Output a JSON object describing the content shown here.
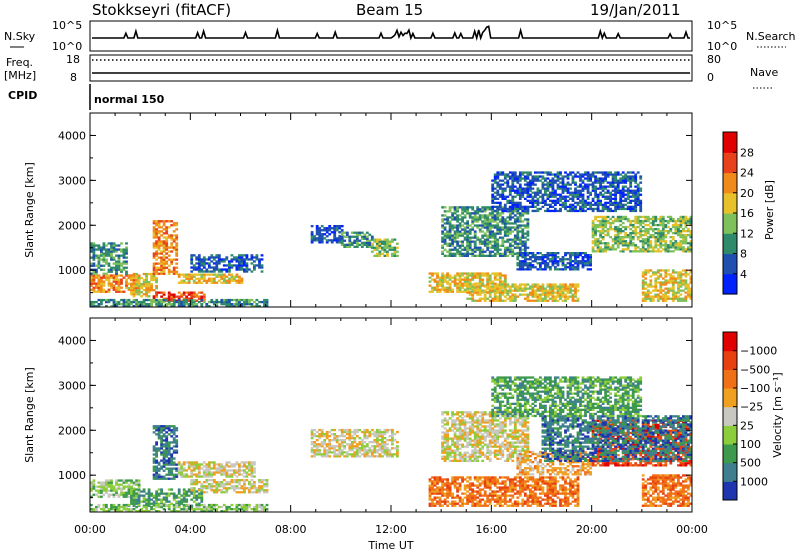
{
  "header": {
    "title": "Stokkseyri (fitACF)",
    "beam": "Beam 15",
    "date": "19/Jan/2011"
  },
  "top_panels": {
    "nsky_label": "N.Sky",
    "nsky_ticks": [
      "10^5",
      "10^0"
    ],
    "nsearch_label": "N.Search",
    "nsearch_ticks": [
      "10^5",
      "10^0"
    ],
    "freq_label": "Freq.",
    "freq_unit": "[MHz]",
    "freq_ticks": [
      "18",
      "8"
    ],
    "nave_label": "Nave",
    "nave_ticks": [
      "80",
      "0"
    ],
    "cpid_label": "CPID",
    "cpid_value": "normal 150"
  },
  "chart_data": [
    {
      "type": "heatmap",
      "name": "power",
      "ylabel": "Slant Range [km]",
      "xlabel": "",
      "ylim": [
        180,
        4500
      ],
      "yticks": [
        "1000",
        "2000",
        "3000",
        "4000"
      ],
      "xlim_hours": [
        0,
        24
      ],
      "colorbar": {
        "label": "Power [dB]",
        "ticks": [
          "4",
          "8",
          "12",
          "16",
          "20",
          "24",
          "28"
        ],
        "colors": [
          "#0022ff",
          "#1f50b0",
          "#2e8a6a",
          "#7ec05a",
          "#e7c12a",
          "#f08a18",
          "#e8421c",
          "#e00000"
        ]
      },
      "regions": [
        {
          "t0": 0.0,
          "t1": 2.0,
          "r0": 500,
          "r1": 900,
          "level": 5
        },
        {
          "t0": 0.0,
          "t1": 1.5,
          "r0": 900,
          "r1": 1600,
          "level": 2
        },
        {
          "t0": 1.5,
          "t1": 2.7,
          "r0": 400,
          "r1": 900,
          "level": 4
        },
        {
          "t0": 2.5,
          "t1": 4.5,
          "r0": 300,
          "r1": 500,
          "level": 6
        },
        {
          "t0": 2.5,
          "t1": 3.5,
          "r0": 900,
          "r1": 2100,
          "level": 5
        },
        {
          "t0": 3.5,
          "t1": 6.0,
          "r0": 700,
          "r1": 900,
          "level": 4
        },
        {
          "t0": 4.0,
          "t1": 6.8,
          "r0": 950,
          "r1": 1350,
          "level": 1
        },
        {
          "t0": 0.0,
          "t1": 7.0,
          "r0": 180,
          "r1": 350,
          "level": 2
        },
        {
          "t0": 8.8,
          "t1": 10.0,
          "r0": 1600,
          "r1": 2000,
          "level": 1
        },
        {
          "t0": 10.0,
          "t1": 11.2,
          "r0": 1500,
          "r1": 1850,
          "level": 2
        },
        {
          "t0": 11.2,
          "t1": 12.2,
          "r0": 1300,
          "r1": 1700,
          "level": 3
        },
        {
          "t0": 13.5,
          "t1": 16.5,
          "r0": 500,
          "r1": 950,
          "level": 4
        },
        {
          "t0": 15.0,
          "t1": 19.5,
          "r0": 300,
          "r1": 700,
          "level": 4
        },
        {
          "t0": 14.0,
          "t1": 17.5,
          "r0": 1300,
          "r1": 2400,
          "level": 2
        },
        {
          "t0": 17.0,
          "t1": 20.0,
          "r0": 1000,
          "r1": 1400,
          "level": 1
        },
        {
          "t0": 20.0,
          "t1": 24.0,
          "r0": 1400,
          "r1": 2200,
          "level": 3
        },
        {
          "t0": 22.0,
          "t1": 24.0,
          "r0": 300,
          "r1": 1000,
          "level": 4
        },
        {
          "t0": 16.0,
          "t1": 22.0,
          "r0": 2300,
          "r1": 3200,
          "level": 1
        }
      ]
    },
    {
      "type": "heatmap",
      "name": "velocity",
      "ylabel": "Slant Range [km]",
      "xlabel": "Time UT",
      "ylim": [
        180,
        4500
      ],
      "yticks": [
        "1000",
        "2000",
        "3000",
        "4000"
      ],
      "xticks": [
        "00:00",
        "04:00",
        "08:00",
        "12:00",
        "16:00",
        "20:00",
        "00:00"
      ],
      "xlim_hours": [
        0,
        24
      ],
      "colorbar": {
        "label": "Velocity [m s⁻¹]",
        "ticks": [
          "1000",
          "500",
          "100",
          "25",
          "−25",
          "−100",
          "−500",
          "−1000"
        ],
        "colors": [
          "#1f35b0",
          "#3d7f8e",
          "#3d9a4c",
          "#8ccd3c",
          "#c8c8c0",
          "#f0a020",
          "#f07018",
          "#e84010",
          "#e00000"
        ]
      },
      "regions": [
        {
          "t0": 0.0,
          "t1": 2.0,
          "r0": 500,
          "r1": 900,
          "level": 3
        },
        {
          "t0": 2.5,
          "t1": 3.5,
          "r0": 900,
          "r1": 2100,
          "level": 1
        },
        {
          "t0": 1.5,
          "t1": 4.5,
          "r0": 300,
          "r1": 700,
          "level": 2
        },
        {
          "t0": 4.0,
          "t1": 7.0,
          "r0": 600,
          "r1": 900,
          "level": 4
        },
        {
          "t0": 3.5,
          "t1": 6.5,
          "r0": 950,
          "r1": 1300,
          "level": 4
        },
        {
          "t0": 0.0,
          "t1": 7.0,
          "r0": 180,
          "r1": 350,
          "level": 3
        },
        {
          "t0": 8.8,
          "t1": 12.2,
          "r0": 1400,
          "r1": 2000,
          "level": 4
        },
        {
          "t0": 13.5,
          "t1": 19.5,
          "r0": 300,
          "r1": 950,
          "level": 6
        },
        {
          "t0": 14.0,
          "t1": 17.5,
          "r0": 1300,
          "r1": 2400,
          "level": 4
        },
        {
          "t0": 17.0,
          "t1": 20.0,
          "r0": 1000,
          "r1": 1500,
          "level": 5
        },
        {
          "t0": 20.0,
          "t1": 24.0,
          "r0": 1200,
          "r1": 2200,
          "level": 7
        },
        {
          "t0": 18.0,
          "t1": 24.0,
          "r0": 1300,
          "r1": 2300,
          "level": 1
        },
        {
          "t0": 22.0,
          "t1": 24.0,
          "r0": 300,
          "r1": 1000,
          "level": 6
        },
        {
          "t0": 16.0,
          "t1": 22.0,
          "r0": 2300,
          "r1": 3200,
          "level": 2
        }
      ]
    }
  ]
}
